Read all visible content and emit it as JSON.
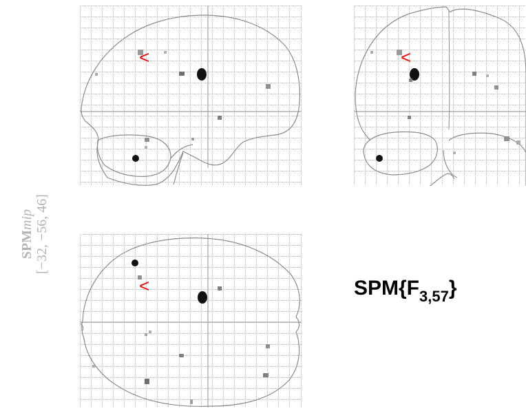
{
  "mip": {
    "label_main": "SPM",
    "label_suffix": "mip",
    "coordinates": "[−32, −56, 46]"
  },
  "stat": {
    "prefix": "SPM{F",
    "df": "3,57",
    "suffix": "}"
  },
  "views": [
    {
      "name": "sagittal"
    },
    {
      "name": "coronal"
    },
    {
      "name": "axial"
    }
  ],
  "cursor_marker": {
    "glyph": "<",
    "color": "#ff0000"
  },
  "colors": {
    "grid": "#999999",
    "outline": "#808080",
    "crosshair": "#a0a0a0"
  }
}
